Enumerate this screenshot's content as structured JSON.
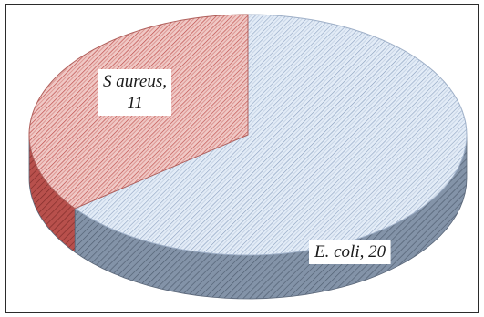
{
  "chart_data": {
    "type": "pie",
    "style": "3d-exploded-none",
    "title": "",
    "series": [
      {
        "categories": [
          "E. coli",
          "S aureus"
        ],
        "values": [
          20,
          11
        ]
      }
    ],
    "labels": [
      {
        "line1": "E. coli, 20",
        "line2": ""
      },
      {
        "line1": "S aureus,",
        "line2": "11"
      }
    ],
    "colors": {
      "e_coli_top": "#dfe9f5",
      "e_coli_hatch": "#7f95b4",
      "e_coli_side": "#6d7d92",
      "s_aureus_top": "#e9b7b3",
      "s_aureus_hatch": "#c0504d",
      "s_aureus_side": "#9f3d3a",
      "frame": "#2b2b2b"
    },
    "legend": "none",
    "start_angle_deg": 0,
    "direction": "clockwise"
  }
}
